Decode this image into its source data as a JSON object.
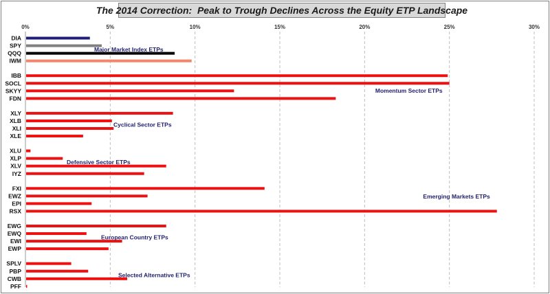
{
  "chart_data": {
    "type": "bar",
    "orientation": "horizontal",
    "title": "The 2014 Correction:  Peak to Trough Declines Across the Equity ETP Landscape",
    "xlabel": "",
    "ylabel": "",
    "xlim": [
      0,
      30
    ],
    "x_ticks": [
      "0%",
      "5%",
      "10%",
      "15%",
      "20%",
      "25%",
      "30%"
    ],
    "grid": "vertical-dashed",
    "groups": [
      {
        "name": "Major Market Index ETPs",
        "items": [
          {
            "label": "DIA",
            "value": 3.8,
            "color": "#1f1f7a"
          },
          {
            "label": "SPY",
            "value": 4.5,
            "color": "#808080"
          },
          {
            "label": "QQQ",
            "value": 8.8,
            "color": "#000000"
          },
          {
            "label": "IWM",
            "value": 9.8,
            "color": "#f4846a"
          }
        ]
      },
      {
        "name": "Momentum Sector ETPs",
        "items": [
          {
            "label": "IBB",
            "value": 24.9,
            "color": "#ee1111"
          },
          {
            "label": "SOCL",
            "value": 25.0,
            "color": "#ee1111"
          },
          {
            "label": "SKYY",
            "value": 12.3,
            "color": "#ee1111"
          },
          {
            "label": "FDN",
            "value": 18.3,
            "color": "#ee1111"
          }
        ]
      },
      {
        "name": "Cyclical Sector ETPs",
        "items": [
          {
            "label": "XLY",
            "value": 8.7,
            "color": "#ee1111"
          },
          {
            "label": "XLB",
            "value": 5.1,
            "color": "#ee1111"
          },
          {
            "label": "XLI",
            "value": 5.2,
            "color": "#ee1111"
          },
          {
            "label": "XLE",
            "value": 3.4,
            "color": "#ee1111"
          }
        ]
      },
      {
        "name": "Defensive Sector ETPs",
        "items": [
          {
            "label": "XLU",
            "value": 0.3,
            "color": "#ee1111"
          },
          {
            "label": "XLP",
            "value": 2.2,
            "color": "#ee1111"
          },
          {
            "label": "XLV",
            "value": 8.3,
            "color": "#ee1111"
          },
          {
            "label": "IYZ",
            "value": 7.0,
            "color": "#ee1111"
          }
        ]
      },
      {
        "name": "Emerging Markets ETPs",
        "items": [
          {
            "label": "FXI",
            "value": 14.1,
            "color": "#ee1111"
          },
          {
            "label": "EWZ",
            "value": 7.2,
            "color": "#ee1111"
          },
          {
            "label": "EPI",
            "value": 3.9,
            "color": "#ee1111"
          },
          {
            "label": "RSX",
            "value": 27.8,
            "color": "#ee1111"
          }
        ]
      },
      {
        "name": "European Country ETPs",
        "items": [
          {
            "label": "EWG",
            "value": 8.3,
            "color": "#ee1111"
          },
          {
            "label": "EWQ",
            "value": 3.6,
            "color": "#ee1111"
          },
          {
            "label": "EWI",
            "value": 5.7,
            "color": "#ee1111"
          },
          {
            "label": "EWP",
            "value": 4.9,
            "color": "#ee1111"
          }
        ]
      },
      {
        "name": "Selected Alternative ETPs",
        "items": [
          {
            "label": "SPLV",
            "value": 2.7,
            "color": "#ee1111"
          },
          {
            "label": "PBP",
            "value": 3.7,
            "color": "#ee1111"
          },
          {
            "label": "CWB",
            "value": 6.0,
            "color": "#ee1111"
          },
          {
            "label": "PFF",
            "value": 0.1,
            "color": "#ee1111"
          }
        ]
      }
    ]
  }
}
